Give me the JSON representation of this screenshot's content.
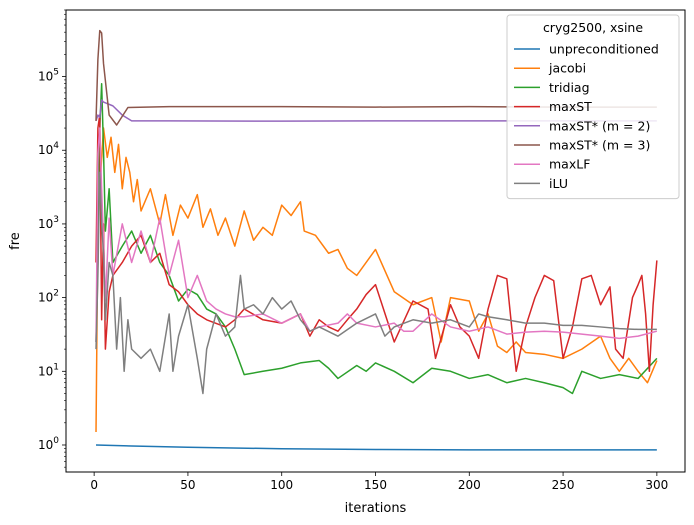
{
  "chart_data": {
    "type": "line",
    "xlabel": "iterations",
    "ylabel": "fre",
    "xlim": [
      -15,
      315
    ],
    "ylim": [
      0.43,
      800000
    ],
    "yscale": "log",
    "xticks": [
      0,
      50,
      100,
      150,
      200,
      250,
      300
    ],
    "yticks": [
      {
        "value": 1,
        "base": "10",
        "exp": "0"
      },
      {
        "value": 10,
        "base": "10",
        "exp": "1"
      },
      {
        "value": 100,
        "base": "10",
        "exp": "2"
      },
      {
        "value": 1000,
        "base": "10",
        "exp": "3"
      },
      {
        "value": 10000,
        "base": "10",
        "exp": "4"
      },
      {
        "value": 100000,
        "base": "10",
        "exp": "5"
      }
    ],
    "grid": false,
    "legend": {
      "title": "cryg2500, xsine",
      "position": "top-right"
    },
    "series": [
      {
        "name": "unpreconditioned",
        "color": "#1f77b4",
        "points": [
          [
            1,
            1.0
          ],
          [
            20,
            0.97
          ],
          [
            50,
            0.93
          ],
          [
            100,
            0.89
          ],
          [
            150,
            0.87
          ],
          [
            200,
            0.86
          ],
          [
            250,
            0.86
          ],
          [
            300,
            0.86
          ]
        ]
      },
      {
        "name": "jacobi",
        "color": "#ff7f0e",
        "points": [
          [
            1,
            1.5
          ],
          [
            2,
            800
          ],
          [
            3,
            3000
          ],
          [
            5,
            20000
          ],
          [
            7,
            8000
          ],
          [
            9,
            15000
          ],
          [
            11,
            5000
          ],
          [
            13,
            12000
          ],
          [
            15,
            3000
          ],
          [
            17,
            8000
          ],
          [
            19,
            5000
          ],
          [
            21,
            2000
          ],
          [
            23,
            4000
          ],
          [
            25,
            1500
          ],
          [
            30,
            3000
          ],
          [
            35,
            1000
          ],
          [
            38,
            2500
          ],
          [
            42,
            700
          ],
          [
            46,
            1800
          ],
          [
            50,
            1200
          ],
          [
            55,
            2500
          ],
          [
            58,
            900
          ],
          [
            62,
            1600
          ],
          [
            66,
            700
          ],
          [
            70,
            1200
          ],
          [
            75,
            500
          ],
          [
            80,
            1500
          ],
          [
            85,
            600
          ],
          [
            90,
            900
          ],
          [
            95,
            700
          ],
          [
            100,
            1800
          ],
          [
            105,
            1300
          ],
          [
            110,
            2000
          ],
          [
            112,
            800
          ],
          [
            118,
            700
          ],
          [
            125,
            400
          ],
          [
            130,
            450
          ],
          [
            135,
            250
          ],
          [
            140,
            200
          ],
          [
            150,
            450
          ],
          [
            160,
            120
          ],
          [
            170,
            80
          ],
          [
            180,
            100
          ],
          [
            185,
            25
          ],
          [
            190,
            100
          ],
          [
            200,
            90
          ],
          [
            205,
            35
          ],
          [
            210,
            60
          ],
          [
            215,
            22
          ],
          [
            220,
            18
          ],
          [
            225,
            25
          ],
          [
            230,
            18
          ],
          [
            240,
            17
          ],
          [
            250,
            15
          ],
          [
            260,
            20
          ],
          [
            270,
            30
          ],
          [
            275,
            15
          ],
          [
            280,
            10
          ],
          [
            285,
            15
          ],
          [
            290,
            10
          ],
          [
            295,
            7
          ],
          [
            300,
            14
          ]
        ]
      },
      {
        "name": "tridiag",
        "color": "#2ca02c",
        "points": [
          [
            1,
            25
          ],
          [
            2,
            300
          ],
          [
            3,
            20000
          ],
          [
            4,
            80000
          ],
          [
            5,
            10000
          ],
          [
            6,
            800
          ],
          [
            8,
            3000
          ],
          [
            10,
            300
          ],
          [
            15,
            500
          ],
          [
            20,
            800
          ],
          [
            25,
            400
          ],
          [
            30,
            700
          ],
          [
            35,
            300
          ],
          [
            40,
            200
          ],
          [
            45,
            90
          ],
          [
            50,
            130
          ],
          [
            55,
            110
          ],
          [
            60,
            70
          ],
          [
            65,
            60
          ],
          [
            70,
            40
          ],
          [
            75,
            20
          ],
          [
            80,
            9
          ],
          [
            90,
            10
          ],
          [
            100,
            11
          ],
          [
            110,
            13
          ],
          [
            120,
            14
          ],
          [
            125,
            11
          ],
          [
            130,
            8
          ],
          [
            140,
            12
          ],
          [
            145,
            10
          ],
          [
            150,
            13
          ],
          [
            160,
            10
          ],
          [
            170,
            7
          ],
          [
            180,
            11
          ],
          [
            190,
            10
          ],
          [
            200,
            8
          ],
          [
            210,
            9
          ],
          [
            220,
            7
          ],
          [
            230,
            8
          ],
          [
            240,
            7
          ],
          [
            250,
            6
          ],
          [
            255,
            5
          ],
          [
            260,
            10
          ],
          [
            270,
            8
          ],
          [
            280,
            9
          ],
          [
            290,
            8
          ],
          [
            300,
            15
          ]
        ]
      },
      {
        "name": "maxST",
        "color": "#d62728",
        "points": [
          [
            1,
            300
          ],
          [
            2,
            20000
          ],
          [
            3,
            30000
          ],
          [
            4,
            50
          ],
          [
            5,
            1000
          ],
          [
            6,
            20
          ],
          [
            8,
            120
          ],
          [
            10,
            200
          ],
          [
            15,
            300
          ],
          [
            20,
            500
          ],
          [
            25,
            700
          ],
          [
            30,
            300
          ],
          [
            35,
            400
          ],
          [
            40,
            150
          ],
          [
            45,
            120
          ],
          [
            50,
            80
          ],
          [
            55,
            60
          ],
          [
            60,
            50
          ],
          [
            70,
            40
          ],
          [
            75,
            50
          ],
          [
            80,
            70
          ],
          [
            90,
            50
          ],
          [
            100,
            45
          ],
          [
            110,
            60
          ],
          [
            115,
            30
          ],
          [
            120,
            50
          ],
          [
            125,
            40
          ],
          [
            130,
            35
          ],
          [
            135,
            50
          ],
          [
            140,
            70
          ],
          [
            145,
            110
          ],
          [
            150,
            150
          ],
          [
            160,
            25
          ],
          [
            170,
            90
          ],
          [
            178,
            70
          ],
          [
            182,
            15
          ],
          [
            190,
            80
          ],
          [
            195,
            40
          ],
          [
            200,
            30
          ],
          [
            205,
            15
          ],
          [
            210,
            70
          ],
          [
            215,
            200
          ],
          [
            220,
            180
          ],
          [
            225,
            10
          ],
          [
            230,
            40
          ],
          [
            235,
            100
          ],
          [
            240,
            200
          ],
          [
            245,
            170
          ],
          [
            250,
            15
          ],
          [
            255,
            40
          ],
          [
            260,
            180
          ],
          [
            265,
            200
          ],
          [
            270,
            80
          ],
          [
            275,
            140
          ],
          [
            278,
            20
          ],
          [
            282,
            15
          ],
          [
            287,
            100
          ],
          [
            290,
            150
          ],
          [
            292,
            200
          ],
          [
            294,
            60
          ],
          [
            296,
            10
          ],
          [
            298,
            80
          ],
          [
            300,
            320
          ]
        ]
      },
      {
        "name": "maxST* (m = 2)",
        "color": "#9467bd",
        "points": [
          [
            1,
            25000
          ],
          [
            2,
            30000
          ],
          [
            3,
            28000
          ],
          [
            4,
            48000
          ],
          [
            5,
            45000
          ],
          [
            10,
            40000
          ],
          [
            15,
            30000
          ],
          [
            20,
            25000
          ],
          [
            40,
            25000
          ],
          [
            100,
            24800
          ],
          [
            150,
            25000
          ],
          [
            200,
            25000
          ],
          [
            250,
            25000
          ],
          [
            300,
            25000
          ]
        ]
      },
      {
        "name": "maxST* (m = 3)",
        "color": "#8c564b",
        "points": [
          [
            1,
            25000
          ],
          [
            2,
            170000
          ],
          [
            3,
            420000
          ],
          [
            4,
            390000
          ],
          [
            5,
            150000
          ],
          [
            8,
            30000
          ],
          [
            12,
            22000
          ],
          [
            18,
            38000
          ],
          [
            40,
            39000
          ],
          [
            100,
            39000
          ],
          [
            150,
            38500
          ],
          [
            200,
            39000
          ],
          [
            250,
            38500
          ],
          [
            300,
            38500
          ]
        ]
      },
      {
        "name": "maxLF",
        "color": "#e377c2",
        "points": [
          [
            1,
            25
          ],
          [
            2,
            9000
          ],
          [
            3,
            20000
          ],
          [
            4,
            3000
          ],
          [
            5,
            600
          ],
          [
            6,
            90
          ],
          [
            8,
            1200
          ],
          [
            10,
            200
          ],
          [
            15,
            1000
          ],
          [
            20,
            300
          ],
          [
            25,
            800
          ],
          [
            30,
            300
          ],
          [
            35,
            1200
          ],
          [
            40,
            200
          ],
          [
            45,
            600
          ],
          [
            50,
            100
          ],
          [
            55,
            200
          ],
          [
            60,
            90
          ],
          [
            65,
            70
          ],
          [
            70,
            60
          ],
          [
            75,
            55
          ],
          [
            80,
            55
          ],
          [
            90,
            60
          ],
          [
            100,
            45
          ],
          [
            110,
            60
          ],
          [
            115,
            35
          ],
          [
            120,
            40
          ],
          [
            130,
            45
          ],
          [
            135,
            60
          ],
          [
            140,
            45
          ],
          [
            150,
            40
          ],
          [
            160,
            45
          ],
          [
            165,
            35
          ],
          [
            170,
            35
          ],
          [
            180,
            60
          ],
          [
            190,
            40
          ],
          [
            200,
            35
          ],
          [
            210,
            40
          ],
          [
            220,
            32
          ],
          [
            230,
            34
          ],
          [
            240,
            35
          ],
          [
            250,
            34
          ],
          [
            260,
            32
          ],
          [
            270,
            30
          ],
          [
            280,
            28
          ],
          [
            290,
            30
          ],
          [
            300,
            35
          ]
        ]
      },
      {
        "name": "iLU",
        "color": "#7f7f7f",
        "points": [
          [
            1,
            20
          ],
          [
            2,
            200
          ],
          [
            3,
            5000
          ],
          [
            4,
            1000
          ],
          [
            5,
            400
          ],
          [
            6,
            50
          ],
          [
            8,
            300
          ],
          [
            10,
            200
          ],
          [
            12,
            20
          ],
          [
            14,
            100
          ],
          [
            16,
            10
          ],
          [
            18,
            50
          ],
          [
            20,
            20
          ],
          [
            25,
            15
          ],
          [
            30,
            20
          ],
          [
            35,
            10
          ],
          [
            40,
            60
          ],
          [
            42,
            10
          ],
          [
            45,
            30
          ],
          [
            50,
            80
          ],
          [
            55,
            15
          ],
          [
            58,
            5
          ],
          [
            60,
            20
          ],
          [
            65,
            60
          ],
          [
            70,
            30
          ],
          [
            75,
            40
          ],
          [
            78,
            200
          ],
          [
            80,
            70
          ],
          [
            85,
            80
          ],
          [
            90,
            60
          ],
          [
            95,
            100
          ],
          [
            100,
            70
          ],
          [
            105,
            90
          ],
          [
            110,
            50
          ],
          [
            115,
            35
          ],
          [
            120,
            40
          ],
          [
            130,
            30
          ],
          [
            140,
            45
          ],
          [
            150,
            60
          ],
          [
            155,
            30
          ],
          [
            160,
            40
          ],
          [
            170,
            50
          ],
          [
            180,
            45
          ],
          [
            190,
            50
          ],
          [
            200,
            40
          ],
          [
            205,
            60
          ],
          [
            210,
            55
          ],
          [
            220,
            50
          ],
          [
            230,
            45
          ],
          [
            240,
            45
          ],
          [
            250,
            42
          ],
          [
            260,
            42
          ],
          [
            270,
            40
          ],
          [
            280,
            38
          ],
          [
            290,
            37
          ],
          [
            300,
            37
          ]
        ]
      }
    ]
  }
}
